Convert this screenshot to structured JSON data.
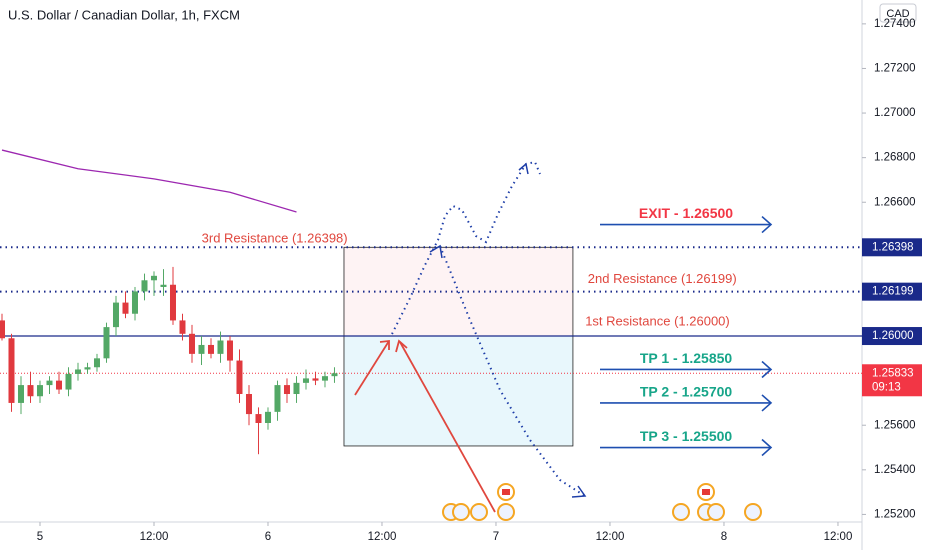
{
  "chart_data": {
    "type": "candlestick",
    "title": "U.S. Dollar / Canadian Dollar, 1h, FXCM",
    "currency": "CAD",
    "up_color": "#53a866",
    "down_color": "#e0393e",
    "x": [
      -4,
      -3,
      -2,
      -1,
      0,
      1,
      2,
      3,
      4,
      5,
      6,
      7,
      8,
      9,
      10,
      11,
      12,
      13,
      14,
      15,
      16,
      17,
      18,
      19,
      20,
      21,
      22,
      23,
      24,
      25,
      26,
      27,
      28,
      29,
      30,
      31
    ],
    "open": [
      1.2607,
      1.2599,
      1.257,
      1.2578,
      1.2573,
      1.2578,
      1.258,
      1.2576,
      1.2583,
      1.2585,
      1.2586,
      1.259,
      1.2604,
      1.2615,
      1.261,
      1.262,
      1.2625,
      1.2622,
      1.2623,
      1.2607,
      1.2601,
      1.2592,
      1.2596,
      1.2592,
      1.2598,
      1.2589,
      1.2574,
      1.2565,
      1.2561,
      1.2566,
      1.2578,
      1.2574,
      1.2579,
      1.2581,
      1.258,
      1.2582
    ],
    "high": [
      1.261,
      1.2601,
      1.2582,
      1.2584,
      1.258,
      1.2582,
      1.2584,
      1.2586,
      1.2588,
      1.2588,
      1.2592,
      1.2606,
      1.2618,
      1.262,
      1.2622,
      1.2628,
      1.2629,
      1.263,
      1.2631,
      1.261,
      1.2605,
      1.26,
      1.2599,
      1.2602,
      1.26,
      1.2594,
      1.2578,
      1.2568,
      1.2568,
      1.258,
      1.2581,
      1.2582,
      1.2585,
      1.2584,
      1.2584,
      1.2586
    ],
    "low": [
      1.2598,
      1.2566,
      1.2565,
      1.257,
      1.257,
      1.2574,
      1.2574,
      1.2573,
      1.258,
      1.2583,
      1.2584,
      1.2588,
      1.26,
      1.2608,
      1.2607,
      1.2616,
      1.2618,
      1.2618,
      1.2605,
      1.2598,
      1.2588,
      1.2587,
      1.259,
      1.2588,
      1.2584,
      1.257,
      1.256,
      1.2547,
      1.2558,
      1.2562,
      1.257,
      1.257,
      1.2576,
      1.2578,
      1.2577,
      1.2579
    ],
    "close": [
      1.2599,
      1.257,
      1.2578,
      1.2573,
      1.2578,
      1.258,
      1.2576,
      1.2583,
      1.2585,
      1.2586,
      1.259,
      1.2604,
      1.2615,
      1.261,
      1.262,
      1.2625,
      1.2627,
      1.2623,
      1.2607,
      1.2601,
      1.2592,
      1.2596,
      1.2592,
      1.2598,
      1.2589,
      1.2574,
      1.2565,
      1.2561,
      1.2566,
      1.2578,
      1.2574,
      1.2579,
      1.2581,
      1.258,
      1.2582,
      1.25833
    ],
    "moving_average": {
      "color": "#9c27b0",
      "x": [
        -4,
        4,
        12,
        20,
        27
      ],
      "values": [
        1.26834,
        1.2675,
        1.26705,
        1.26645,
        1.26556
      ]
    },
    "xlim": [
      -4.21,
      86.53
    ],
    "ylim": [
      1.25166,
      1.27507
    ],
    "xticks": [
      {
        "value": 0,
        "label": "5"
      },
      {
        "value": 12,
        "label": "12:00"
      },
      {
        "value": 24,
        "label": "6"
      },
      {
        "value": 36,
        "label": "12:00"
      },
      {
        "value": 48,
        "label": "7"
      },
      {
        "value": 60,
        "label": "12:00"
      },
      {
        "value": 72,
        "label": "8"
      },
      {
        "value": 84,
        "label": "12:00"
      }
    ],
    "yticks": [
      {
        "value": 1.274,
        "label": "1.27400"
      },
      {
        "value": 1.272,
        "label": "1.27200"
      },
      {
        "value": 1.27,
        "label": "1.27000"
      },
      {
        "value": 1.268,
        "label": "1.26800"
      },
      {
        "value": 1.266,
        "label": "1.26600"
      },
      {
        "value": 1.256,
        "label": "1.25600"
      },
      {
        "value": 1.254,
        "label": "1.25400"
      },
      {
        "value": 1.252,
        "label": "1.25200"
      }
    ],
    "levels": [
      {
        "price": 1.26398,
        "style": "dotted"
      },
      {
        "price": 1.26199,
        "style": "dotted"
      },
      {
        "price": 1.26,
        "label": "1.26000",
        "style": "solid"
      }
    ],
    "last_price": {
      "value": 1.25833,
      "countdown": "09:13",
      "color": "#f23645"
    },
    "zones": [
      {
        "from": 1.26,
        "to": 1.26398,
        "x": [
          32,
          56.1
        ],
        "color": "rgba(242,54,69,0.06)"
      },
      {
        "from": 1.25507,
        "to": 1.26,
        "x": [
          32,
          56.1
        ],
        "color": "rgba(0,170,220,0.09)"
      }
    ],
    "annotations": [
      {
        "text": "3rd Resistance (1.26398)",
        "price": 1.26398,
        "kind": "resistance",
        "x": 24.7
      },
      {
        "text": "2nd Resistance (1.26199)",
        "price": 1.26199,
        "kind": "resistance",
        "x": 65.5
      },
      {
        "text": "1st Resistance (1.26000)",
        "price": 1.26,
        "kind": "resistance",
        "x": 65
      },
      {
        "text": "EXIT - 1.26500",
        "price": 1.265,
        "kind": "exit"
      },
      {
        "text": "TP 1 - 1.25850",
        "price": 1.2585,
        "kind": "tp"
      },
      {
        "text": "TP 2 - 1.25700",
        "price": 1.257,
        "kind": "tp"
      },
      {
        "text": "TP 3 - 1.25500",
        "price": 1.255,
        "kind": "tp"
      }
    ]
  }
}
